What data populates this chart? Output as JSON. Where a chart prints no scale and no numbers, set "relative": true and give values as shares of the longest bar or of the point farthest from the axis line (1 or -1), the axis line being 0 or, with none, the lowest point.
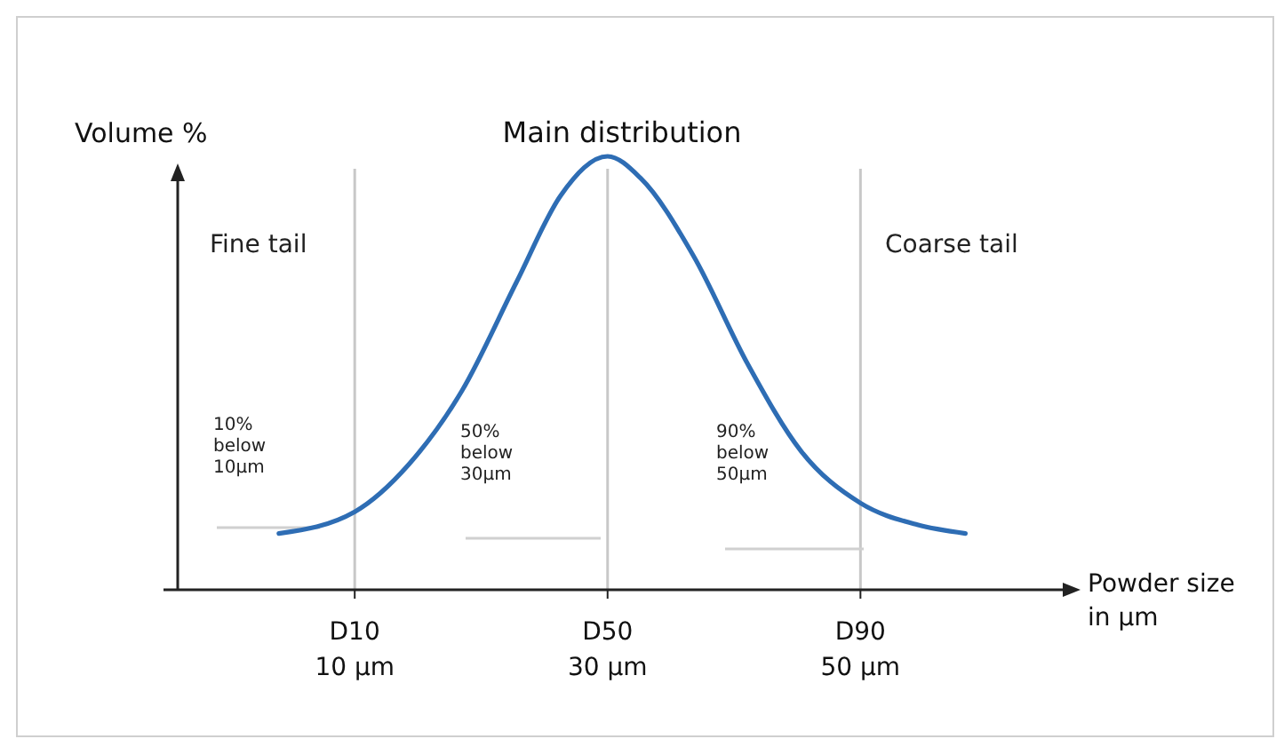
{
  "chart_data": {
    "type": "line",
    "title": "Main distribution",
    "xlabel": "Powder size\nin µm",
    "ylabel": "Volume %",
    "relative": true,
    "xlim": [
      -4,
      66
    ],
    "xticks": [
      {
        "value": 10,
        "label": "10 µm"
      },
      {
        "value": 30,
        "label": "30 µm"
      },
      {
        "value": 50,
        "label": "50 µm"
      }
    ],
    "series": [
      {
        "color": "#2e6db4",
        "x": [
          4,
          10,
          14.3,
          18.5,
          22.8,
          26.3,
          30,
          32.6,
          36.8,
          41.1,
          45.3,
          50,
          54.5,
          58.3
        ],
        "values": [
          0.13,
          0.18,
          0.29,
          0.46,
          0.71,
          0.91,
          1,
          0.95,
          0.77,
          0.52,
          0.32,
          0.2,
          0.15,
          0.13
        ]
      }
    ],
    "ref_lines": [
      {
        "axis": "x",
        "value": 10,
        "label": "D10",
        "color": "#c8c8c8"
      },
      {
        "axis": "x",
        "value": 30,
        "label": "D50",
        "color": "#c8c8c8"
      },
      {
        "axis": "x",
        "value": 50,
        "label": "D90",
        "color": "#c8c8c8"
      }
    ],
    "annotations": [
      "Fine tail",
      "Coarse tail",
      "10%\nbelow\n10µm",
      "50%\nbelow\n30µm",
      "90%\nbelow\n50µm"
    ]
  }
}
